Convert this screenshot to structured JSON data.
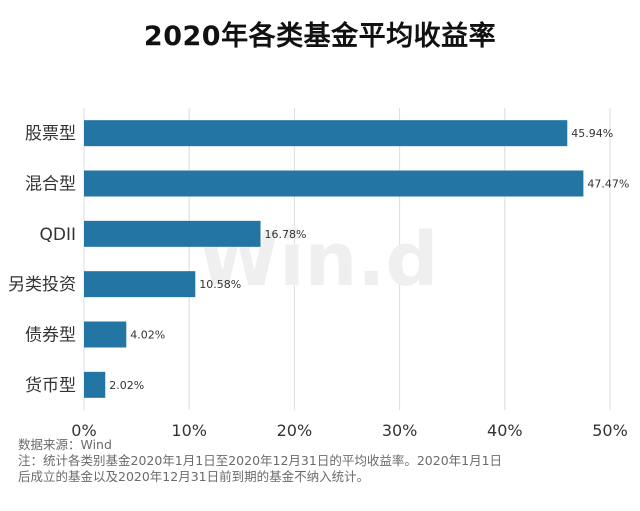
{
  "chart_data": {
    "type": "bar",
    "orientation": "horizontal",
    "title": "2020年各类基金平均收益率",
    "categories": [
      "股票型",
      "混合型",
      "QDII",
      "另类投资",
      "债券型",
      "货币型"
    ],
    "values": [
      45.94,
      47.47,
      16.78,
      10.58,
      4.02,
      2.02
    ],
    "value_labels": [
      "45.94%",
      "47.47%",
      "16.78%",
      "10.58%",
      "4.02%",
      "2.02%"
    ],
    "xlim": [
      0,
      50
    ],
    "xticks": [
      0,
      10,
      20,
      30,
      40,
      50
    ],
    "xtick_labels": [
      "0%",
      "10%",
      "20%",
      "30%",
      "40%",
      "50%"
    ],
    "grid": "vertical",
    "bar_color": "#2375a3",
    "watermark": "Win.d"
  },
  "notes": {
    "source": "数据来源：Wind",
    "line1": "注：统计各类别基金2020年1月1日至2020年12月31日的平均收益率。2020年1月1日",
    "line2": "后成立的基金以及2020年12月31日前到期的基金不纳入统计。"
  }
}
